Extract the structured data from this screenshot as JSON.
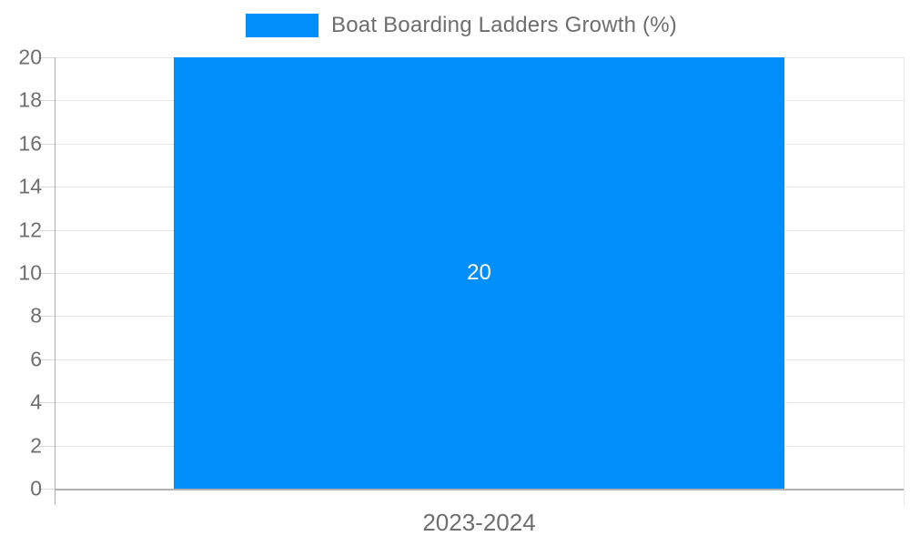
{
  "colors": {
    "bar": "#008ffb",
    "grid": "#e8e8e8",
    "axis_line": "#adadad",
    "baseline": "#b1b1b1",
    "text": "#6e6e6e",
    "data_label": "#ffffff",
    "background": "#ffffff"
  },
  "legend": {
    "label": "Boat Boarding Ladders Growth (%)"
  },
  "chart_data": {
    "type": "bar",
    "title": "Boat Boarding Ladders Growth (%)",
    "categories": [
      "2023-2024"
    ],
    "values": [
      20
    ],
    "series": [
      {
        "name": "Boat Boarding Ladders Growth (%)",
        "values": [
          20
        ]
      }
    ],
    "data_labels": [
      "20"
    ],
    "xlabel": "",
    "ylabel": "",
    "ylim": [
      0,
      20
    ],
    "ytick_step": 2,
    "yticks": [
      0,
      2,
      4,
      6,
      8,
      10,
      12,
      14,
      16,
      18,
      20
    ],
    "grid": true,
    "legend_position": "top",
    "bar_width_fraction": 0.72
  }
}
